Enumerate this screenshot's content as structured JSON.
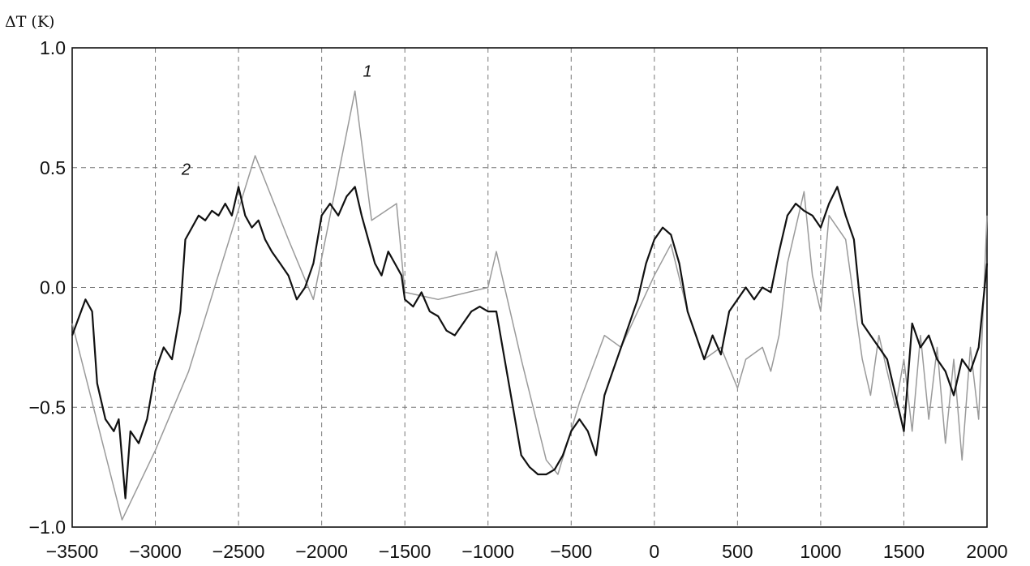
{
  "chart_data": {
    "type": "line",
    "ylabel": "ΔT (K)",
    "xlabel": "",
    "xlim": [
      -3500,
      2000
    ],
    "ylim": [
      -1.0,
      1.0
    ],
    "x_ticks": [
      -3500,
      -3000,
      -2500,
      -2000,
      -1500,
      -1000,
      -500,
      0,
      500,
      1000,
      1500,
      2000
    ],
    "x_tick_labels": [
      "−3500",
      "−3000",
      "−2500",
      "−2000",
      "−1500",
      "−1000",
      "−500",
      "0",
      "500",
      "1000",
      "1500",
      "2000"
    ],
    "y_ticks": [
      -1.0,
      -0.5,
      0.0,
      0.5,
      1.0
    ],
    "y_tick_labels": [
      "−1.0",
      "−0.5",
      "0.0",
      "0.5",
      "1.0"
    ],
    "grid": true,
    "series": [
      {
        "name": "1",
        "color": "#9a9a9a",
        "x": [
          -3500,
          -3200,
          -3000,
          -2800,
          -2400,
          -2200,
          -2050,
          -1800,
          -1700,
          -1550,
          -1500,
          -1300,
          -1000,
          -950,
          -800,
          -650,
          -580,
          -450,
          -300,
          -200,
          0,
          100,
          200,
          300,
          400,
          500,
          550,
          650,
          700,
          750,
          800,
          900,
          950,
          1000,
          1050,
          1150,
          1200,
          1250,
          1300,
          1350,
          1400,
          1450,
          1500,
          1550,
          1600,
          1650,
          1700,
          1750,
          1800,
          1850,
          1900,
          1950,
          2000
        ],
        "y": [
          -0.15,
          -0.97,
          -0.68,
          -0.35,
          0.55,
          0.2,
          -0.05,
          0.82,
          0.28,
          0.35,
          -0.02,
          -0.05,
          0.0,
          0.15,
          -0.3,
          -0.72,
          -0.78,
          -0.48,
          -0.2,
          -0.25,
          0.05,
          0.18,
          -0.1,
          -0.3,
          -0.25,
          -0.42,
          -0.3,
          -0.25,
          -0.35,
          -0.2,
          0.1,
          0.4,
          0.05,
          -0.1,
          0.3,
          0.2,
          -0.05,
          -0.3,
          -0.45,
          -0.2,
          -0.35,
          -0.5,
          -0.3,
          -0.6,
          -0.2,
          -0.55,
          -0.25,
          -0.65,
          -0.3,
          -0.72,
          -0.25,
          -0.55,
          0.3
        ]
      },
      {
        "name": "2",
        "color": "#111111",
        "x": [
          -3500,
          -3420,
          -3380,
          -3350,
          -3300,
          -3250,
          -3220,
          -3180,
          -3150,
          -3100,
          -3050,
          -3000,
          -2950,
          -2900,
          -2850,
          -2820,
          -2780,
          -2740,
          -2700,
          -2660,
          -2620,
          -2580,
          -2540,
          -2500,
          -2460,
          -2420,
          -2380,
          -2340,
          -2300,
          -2250,
          -2200,
          -2150,
          -2100,
          -2050,
          -2000,
          -1950,
          -1900,
          -1850,
          -1800,
          -1760,
          -1720,
          -1680,
          -1640,
          -1600,
          -1560,
          -1520,
          -1500,
          -1450,
          -1400,
          -1350,
          -1300,
          -1250,
          -1200,
          -1150,
          -1100,
          -1050,
          -1000,
          -950,
          -900,
          -850,
          -800,
          -750,
          -700,
          -650,
          -600,
          -550,
          -500,
          -450,
          -400,
          -350,
          -300,
          -250,
          -200,
          -150,
          -100,
          -50,
          0,
          50,
          100,
          150,
          200,
          250,
          300,
          350,
          400,
          450,
          500,
          550,
          600,
          650,
          700,
          750,
          800,
          850,
          900,
          950,
          1000,
          1050,
          1100,
          1150,
          1200,
          1250,
          1300,
          1350,
          1400,
          1450,
          1500,
          1550,
          1600,
          1650,
          1700,
          1750,
          1800,
          1850,
          1900,
          1950,
          2000
        ],
        "y": [
          -0.2,
          -0.05,
          -0.1,
          -0.4,
          -0.55,
          -0.6,
          -0.55,
          -0.88,
          -0.6,
          -0.65,
          -0.55,
          -0.35,
          -0.25,
          -0.3,
          -0.1,
          0.2,
          0.25,
          0.3,
          0.28,
          0.32,
          0.3,
          0.35,
          0.3,
          0.42,
          0.3,
          0.25,
          0.28,
          0.2,
          0.15,
          0.1,
          0.05,
          -0.05,
          0.0,
          0.1,
          0.3,
          0.35,
          0.3,
          0.38,
          0.42,
          0.3,
          0.2,
          0.1,
          0.05,
          0.15,
          0.1,
          0.05,
          -0.05,
          -0.08,
          -0.02,
          -0.1,
          -0.12,
          -0.18,
          -0.2,
          -0.15,
          -0.1,
          -0.08,
          -0.1,
          -0.1,
          -0.3,
          -0.5,
          -0.7,
          -0.75,
          -0.78,
          -0.78,
          -0.76,
          -0.7,
          -0.6,
          -0.55,
          -0.6,
          -0.7,
          -0.45,
          -0.35,
          -0.25,
          -0.15,
          -0.05,
          0.1,
          0.2,
          0.25,
          0.22,
          0.1,
          -0.1,
          -0.2,
          -0.3,
          -0.2,
          -0.28,
          -0.1,
          -0.05,
          0.0,
          -0.05,
          0.0,
          -0.02,
          0.15,
          0.3,
          0.35,
          0.32,
          0.3,
          0.25,
          0.35,
          0.42,
          0.3,
          0.2,
          -0.15,
          -0.2,
          -0.25,
          -0.3,
          -0.45,
          -0.6,
          -0.15,
          -0.25,
          -0.2,
          -0.3,
          -0.35,
          -0.45,
          -0.3,
          -0.35,
          -0.25,
          0.1
        ]
      }
    ],
    "annotations": [
      {
        "text": "1",
        "x": -1725,
        "y": 0.88
      },
      {
        "text": "2",
        "x": -2815,
        "y": 0.47
      }
    ]
  }
}
